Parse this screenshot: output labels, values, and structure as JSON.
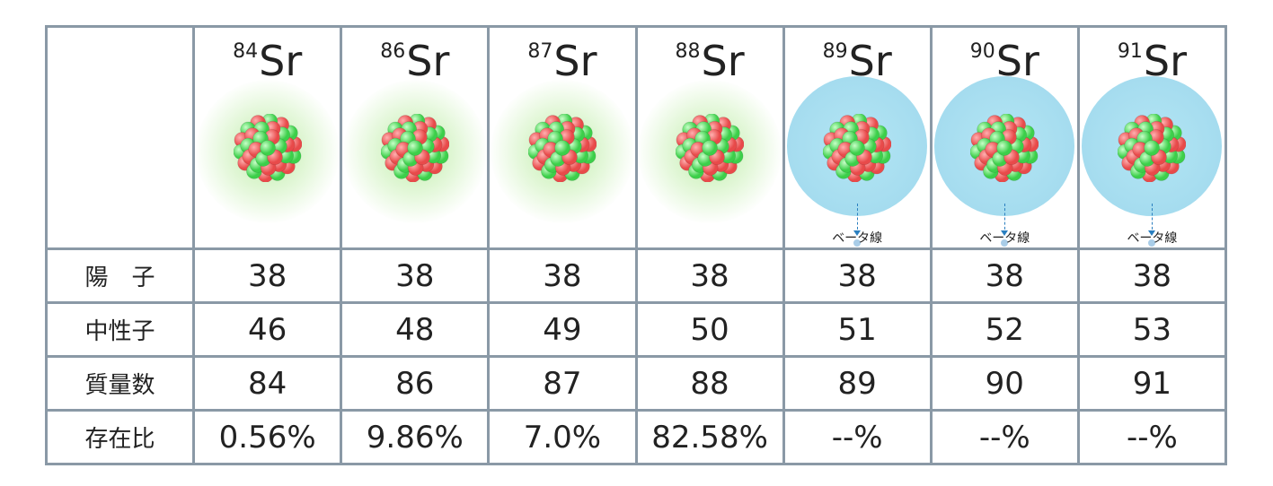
{
  "isotopes": [
    {
      "mass": "84",
      "symbol": "Sr",
      "type": "stable"
    },
    {
      "mass": "86",
      "symbol": "Sr",
      "type": "stable"
    },
    {
      "mass": "87",
      "symbol": "Sr",
      "type": "stable"
    },
    {
      "mass": "88",
      "symbol": "Sr",
      "type": "stable"
    },
    {
      "mass": "89",
      "symbol": "Sr",
      "type": "radioactive",
      "decay_label": "ベータ線"
    },
    {
      "mass": "90",
      "symbol": "Sr",
      "type": "radioactive",
      "decay_label": "ベータ線"
    },
    {
      "mass": "91",
      "symbol": "Sr",
      "type": "radioactive",
      "decay_label": "ベータ線"
    }
  ],
  "rows": [
    {
      "label": "陽　子",
      "values": [
        "38",
        "38",
        "38",
        "38",
        "38",
        "38",
        "38"
      ]
    },
    {
      "label": "中性子",
      "values": [
        "46",
        "48",
        "49",
        "50",
        "51",
        "52",
        "53"
      ]
    },
    {
      "label": "質量数",
      "values": [
        "84",
        "86",
        "87",
        "88",
        "89",
        "90",
        "91"
      ]
    },
    {
      "label": "存在比",
      "values": [
        "0.56%",
        "9.86%",
        "7.0%",
        "82.58%",
        "--%",
        "--%",
        "--%"
      ]
    }
  ],
  "colors": {
    "border": "#8a99a6",
    "stable_halo": "#c8f0b4",
    "radioactive_halo": "#a8def0",
    "proton": "#e84a4a",
    "neutron": "#3ccf4a",
    "beta_arrow": "#2a7fc0"
  }
}
